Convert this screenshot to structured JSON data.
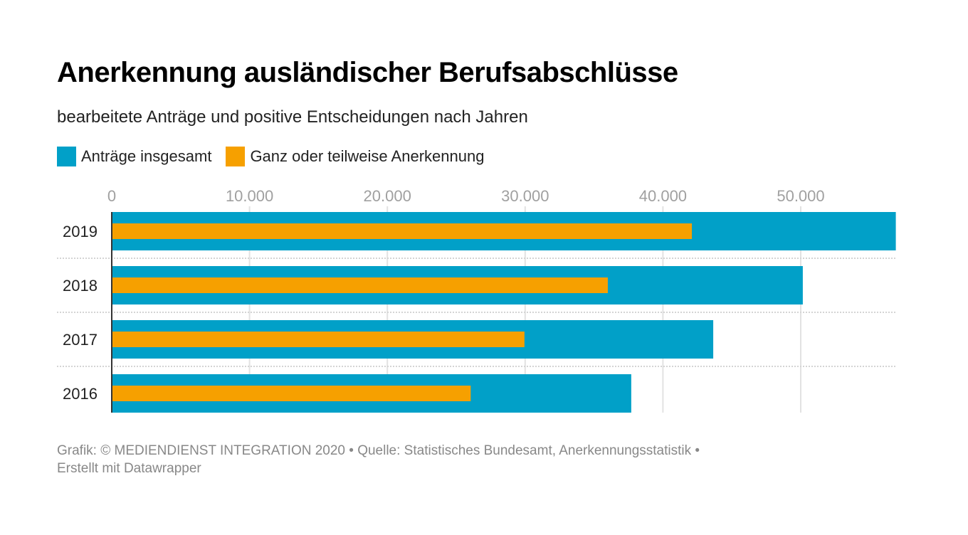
{
  "header": {
    "title": "Anerkennung ausländischer Berufsabschlüsse",
    "subtitle": "bearbeitete Anträge und positive Entscheidungen nach Jahren"
  },
  "legend": [
    {
      "label": "Anträge insgesamt",
      "color": "#01a0c8"
    },
    {
      "label": "Ganz oder teilweise Anerkennung",
      "color": "#f6a000"
    }
  ],
  "footer": {
    "line1": "Grafik: © MEDIENDIENST INTEGRATION 2020 • Quelle: Statistisches Bundesamt, Anerkennungsstatistik •",
    "line2": "Erstellt mit Datawrapper"
  },
  "chart_data": {
    "type": "bar",
    "orientation": "horizontal",
    "title": "Anerkennung ausländischer Berufsabschlüsse",
    "subtitle": "bearbeitete Anträge und positive Entscheidungen nach Jahren",
    "categories": [
      "2019",
      "2018",
      "2017",
      "2016"
    ],
    "series": [
      {
        "name": "Anträge insgesamt",
        "color": "#01a0c8",
        "values": [
          56900,
          50150,
          43650,
          37700
        ]
      },
      {
        "name": "Ganz oder teilweise Anerkennung",
        "color": "#f6a000",
        "values": [
          42100,
          36000,
          29950,
          26050
        ]
      }
    ],
    "xlim": [
      0,
      56900
    ],
    "xticks": [
      0,
      10000,
      20000,
      30000,
      40000,
      50000
    ],
    "xtick_labels": [
      "0",
      "10.000",
      "20.000",
      "30.000",
      "40.000",
      "50.000"
    ],
    "xlabel": "",
    "ylabel": "",
    "grid": true,
    "legend_position": "top-left",
    "source": "Statistisches Bundesamt, Anerkennungsstatistik"
  }
}
